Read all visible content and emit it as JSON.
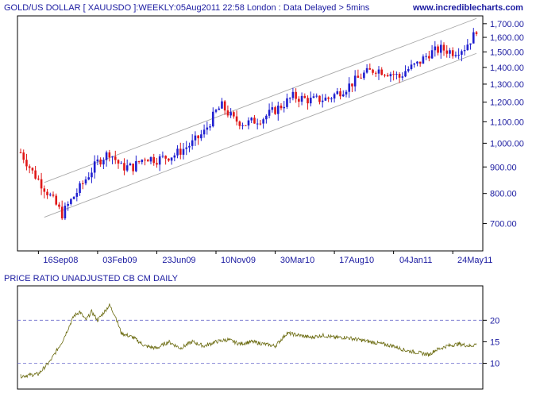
{
  "header": {
    "title": "GOLD/US DOLLAR [ XAUUSDO ]:WEEKLY:05Aug2011 22:58 London : Data Delayed > 5mins",
    "site": "www.incrediblecharts.com"
  },
  "colors": {
    "up": "#2020d0",
    "down": "#e01818",
    "axis_text": "#1a1aa0",
    "ratio_line": "#6b6b10",
    "grid_dash": "#6a6acb",
    "channel": "#a8a8a8"
  },
  "chart_data": [
    {
      "type": "candlestick",
      "title": "GOLD/US DOLLAR [ XAUUSDO ]:WEEKLY:05Aug2011 22:58 London : Data Delayed > 5mins",
      "y_scale": "log",
      "ylim": [
        620,
        1760
      ],
      "y_ticks": [
        {
          "value": 700,
          "label": "700.00"
        },
        {
          "value": 800,
          "label": "800.00"
        },
        {
          "value": 900,
          "label": "900.00"
        },
        {
          "value": 1000,
          "label": "1,000.00"
        },
        {
          "value": 1100,
          "label": "1,100.00"
        },
        {
          "value": 1200,
          "label": "1,200.00"
        },
        {
          "value": 1300,
          "label": "1,300.00"
        },
        {
          "value": 1400,
          "label": "1,400.00"
        },
        {
          "value": 1500,
          "label": "1,500.00"
        },
        {
          "value": 1600,
          "label": "1,600.00"
        },
        {
          "value": 1700,
          "label": "1,700.00"
        }
      ],
      "x_ticks": [
        "16Sep08",
        "03Feb09",
        "23Jun09",
        "10Nov09",
        "30Mar10",
        "17Aug10",
        "04Jan11",
        "24May11"
      ],
      "x_tick_week_index": [
        6,
        26,
        46,
        66,
        86,
        106,
        126,
        146
      ],
      "price_path": [
        {
          "week": 0,
          "price": 960
        },
        {
          "week": 4,
          "price": 880
        },
        {
          "week": 8,
          "price": 820
        },
        {
          "week": 12,
          "price": 760
        },
        {
          "week": 14,
          "price": 730
        },
        {
          "week": 16,
          "price": 760
        },
        {
          "week": 20,
          "price": 820
        },
        {
          "week": 26,
          "price": 920
        },
        {
          "week": 30,
          "price": 960
        },
        {
          "week": 34,
          "price": 900
        },
        {
          "week": 38,
          "price": 900
        },
        {
          "week": 42,
          "price": 940
        },
        {
          "week": 46,
          "price": 930
        },
        {
          "week": 52,
          "price": 950
        },
        {
          "week": 58,
          "price": 1000
        },
        {
          "week": 62,
          "price": 1050
        },
        {
          "week": 66,
          "price": 1150
        },
        {
          "week": 68,
          "price": 1180
        },
        {
          "week": 72,
          "price": 1110
        },
        {
          "week": 76,
          "price": 1090
        },
        {
          "week": 82,
          "price": 1120
        },
        {
          "week": 88,
          "price": 1180
        },
        {
          "week": 92,
          "price": 1230
        },
        {
          "week": 98,
          "price": 1210
        },
        {
          "week": 104,
          "price": 1220
        },
        {
          "week": 110,
          "price": 1280
        },
        {
          "week": 116,
          "price": 1360
        },
        {
          "week": 120,
          "price": 1390
        },
        {
          "week": 124,
          "price": 1370
        },
        {
          "week": 126,
          "price": 1360
        },
        {
          "week": 128,
          "price": 1340
        },
        {
          "week": 130,
          "price": 1380
        },
        {
          "week": 134,
          "price": 1420
        },
        {
          "week": 138,
          "price": 1490
        },
        {
          "week": 142,
          "price": 1520
        },
        {
          "week": 146,
          "price": 1500
        },
        {
          "week": 150,
          "price": 1530
        },
        {
          "week": 153,
          "price": 1610
        },
        {
          "week": 154,
          "price": 1660
        }
      ],
      "channel": {
        "upper": [
          {
            "week": 8,
            "price": 840
          },
          {
            "week": 154,
            "price": 1740
          }
        ],
        "lower": [
          {
            "week": 8,
            "price": 720
          },
          {
            "week": 154,
            "price": 1490
          }
        ]
      }
    },
    {
      "type": "line",
      "title": "PRICE RATIO UNADJUSTED CB CM DAILY",
      "ylim": [
        4,
        28
      ],
      "y_ticks": [
        {
          "value": 10,
          "label": "10"
        },
        {
          "value": 15,
          "label": "15"
        },
        {
          "value": 20,
          "label": "20"
        }
      ],
      "dashed_levels": [
        10,
        20
      ],
      "points": [
        {
          "week": 0,
          "value": 7
        },
        {
          "week": 6,
          "value": 7.5
        },
        {
          "week": 10,
          "value": 10.5
        },
        {
          "week": 14,
          "value": 15
        },
        {
          "week": 18,
          "value": 21
        },
        {
          "week": 20,
          "value": 22
        },
        {
          "week": 22,
          "value": 20
        },
        {
          "week": 24,
          "value": 22
        },
        {
          "week": 26,
          "value": 20
        },
        {
          "week": 30,
          "value": 23.5
        },
        {
          "week": 32,
          "value": 21
        },
        {
          "week": 34,
          "value": 17
        },
        {
          "week": 38,
          "value": 16
        },
        {
          "week": 42,
          "value": 14
        },
        {
          "week": 46,
          "value": 13.5
        },
        {
          "week": 50,
          "value": 15
        },
        {
          "week": 54,
          "value": 13.5
        },
        {
          "week": 58,
          "value": 15
        },
        {
          "week": 62,
          "value": 14
        },
        {
          "week": 66,
          "value": 15
        },
        {
          "week": 70,
          "value": 15.5
        },
        {
          "week": 74,
          "value": 14.5
        },
        {
          "week": 78,
          "value": 15
        },
        {
          "week": 82,
          "value": 14.5
        },
        {
          "week": 86,
          "value": 14
        },
        {
          "week": 90,
          "value": 17
        },
        {
          "week": 94,
          "value": 16.5
        },
        {
          "week": 98,
          "value": 16
        },
        {
          "week": 102,
          "value": 16.5
        },
        {
          "week": 106,
          "value": 16
        },
        {
          "week": 110,
          "value": 16
        },
        {
          "week": 114,
          "value": 15.5
        },
        {
          "week": 118,
          "value": 15
        },
        {
          "week": 122,
          "value": 14.5
        },
        {
          "week": 126,
          "value": 14
        },
        {
          "week": 130,
          "value": 13
        },
        {
          "week": 134,
          "value": 12.5
        },
        {
          "week": 138,
          "value": 12
        },
        {
          "week": 140,
          "value": 13
        },
        {
          "week": 144,
          "value": 14
        },
        {
          "week": 148,
          "value": 14.5
        },
        {
          "week": 152,
          "value": 14
        },
        {
          "week": 154,
          "value": 14.5
        }
      ]
    }
  ]
}
